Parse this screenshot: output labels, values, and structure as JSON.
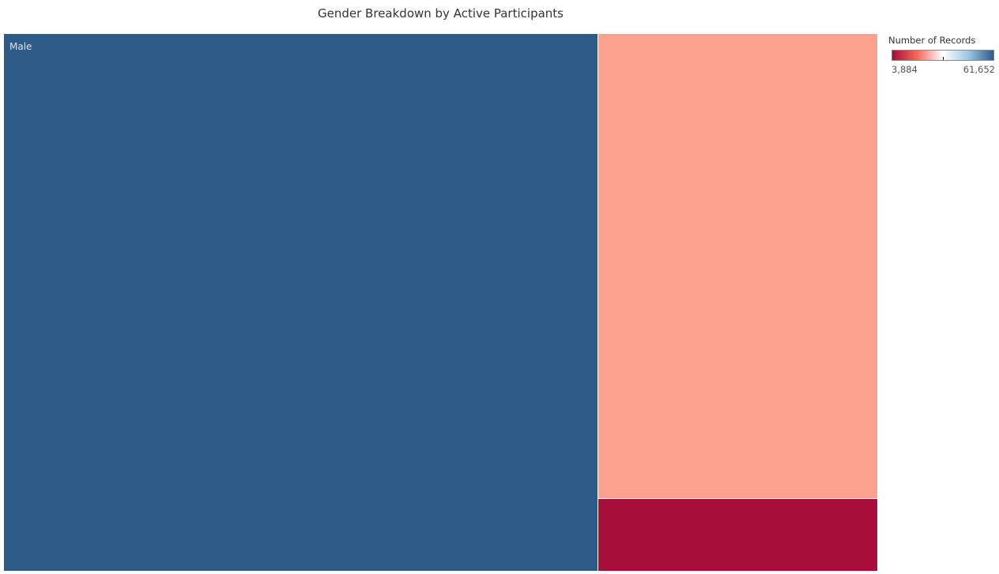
{
  "chart_data": {
    "type": "treemap",
    "title": "Gender Breakdown by Active Participants",
    "items": [
      {
        "label": "Male",
        "value": 61652,
        "color": "#2e5a87"
      },
      {
        "label": "",
        "value": 25200,
        "color": "#fca28f"
      },
      {
        "label": "",
        "value": 3884,
        "color": "#a70e39"
      }
    ],
    "legend": {
      "title": "Number of Records",
      "min": 3884,
      "max": 61652,
      "min_label": "3,884",
      "max_label": "61,652",
      "gradient": [
        "#a70e39",
        "#f56a5c",
        "#ffffff",
        "#9ec7e4",
        "#2e5a87"
      ],
      "placement": "top-right"
    }
  }
}
